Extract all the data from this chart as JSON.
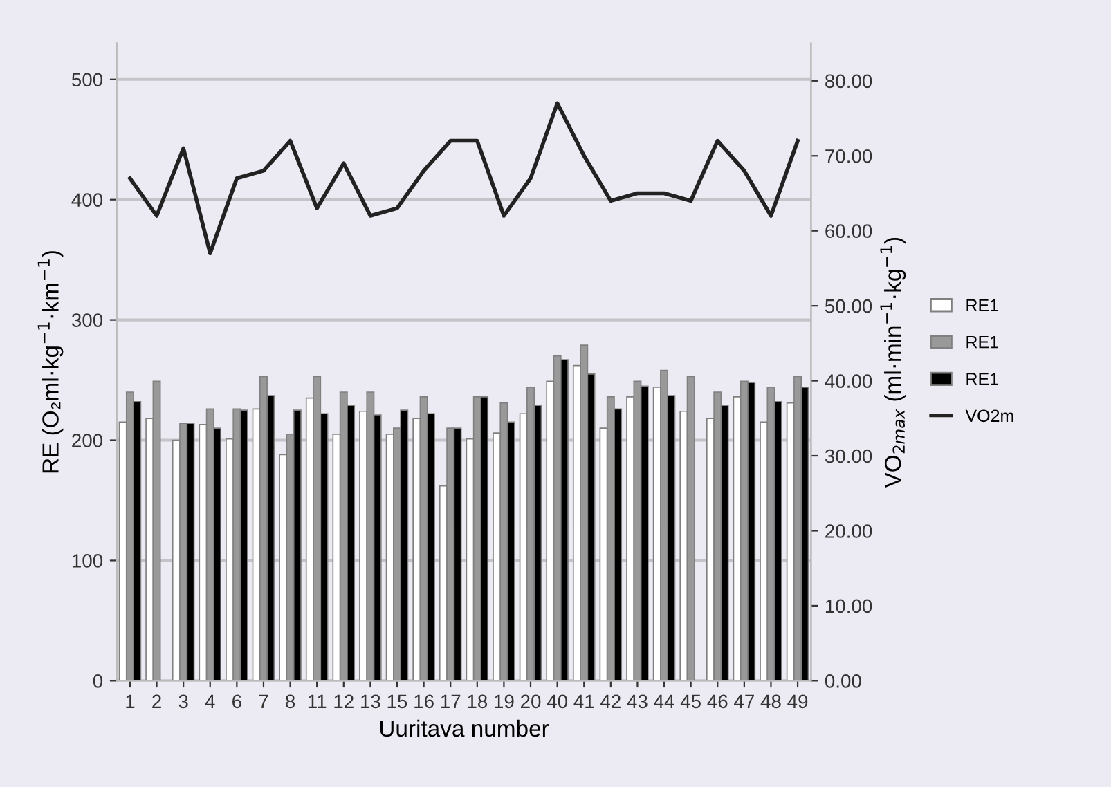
{
  "chart_data": {
    "type": "bar",
    "xlabel": "Uuritava number",
    "ylabel": "RE (O₂ml·kg$^{−1}$·km$^{−1}$)",
    "y2label": "VO$_{2max}$ (ml·min$^{−1}$·kg$^{−1}$)",
    "categories": [
      "1",
      "2",
      "3",
      "4",
      "6",
      "7",
      "8",
      "11",
      "12",
      "13",
      "15",
      "16",
      "17",
      "18",
      "19",
      "20",
      "40",
      "41",
      "42",
      "43",
      "44",
      "45",
      "46",
      "47",
      "48",
      "49"
    ],
    "series": [
      {
        "name": "RE1",
        "color": "#ffffff",
        "values": [
          215,
          218,
          200,
          213,
          201,
          226,
          188,
          235,
          205,
          224,
          205,
          218,
          162,
          201,
          206,
          222,
          249,
          262,
          210,
          236,
          244,
          224,
          218,
          236,
          215,
          231
        ]
      },
      {
        "name": "RE1",
        "color": "#999999",
        "values": [
          240,
          249,
          214,
          226,
          226,
          253,
          205,
          253,
          240,
          240,
          210,
          236,
          210,
          236,
          231,
          244,
          270,
          279,
          236,
          249,
          258,
          253,
          240,
          249,
          244,
          253
        ]
      },
      {
        "name": "RE1",
        "color": "#000000",
        "values": [
          232,
          null,
          214,
          210,
          225,
          237,
          225,
          222,
          229,
          221,
          225,
          222,
          210,
          236,
          215,
          229,
          267,
          255,
          226,
          245,
          237,
          null,
          229,
          248,
          232,
          244
        ]
      },
      {
        "name": "VO2m",
        "type": "line",
        "axis": "y2",
        "color": "#222222",
        "values": [
          67,
          62,
          71,
          57,
          67,
          68,
          72,
          63,
          69,
          62,
          63,
          68,
          72,
          72,
          62,
          67,
          77,
          70,
          64,
          65,
          65,
          64,
          72,
          68,
          62,
          72
        ]
      }
    ],
    "ylim": [
      0,
      530
    ],
    "yticks": [
      0,
      100,
      200,
      300,
      400,
      500
    ],
    "y2lim": [
      0,
      85
    ],
    "y2ticks": [
      {
        "value": 0,
        "label": "0.00"
      },
      {
        "value": 10,
        "label": "10.00"
      },
      {
        "value": 20,
        "label": "20.00"
      },
      {
        "value": 30,
        "label": "30.00"
      },
      {
        "value": 40,
        "label": "40.00"
      },
      {
        "value": 50,
        "label": "50.00"
      },
      {
        "value": 60,
        "label": "60.00"
      },
      {
        "value": 70,
        "label": "70.00"
      },
      {
        "value": 80,
        "label": "80.00"
      }
    ],
    "grid": "y",
    "legend": "right",
    "marker": "none",
    "line_style": "solid"
  }
}
